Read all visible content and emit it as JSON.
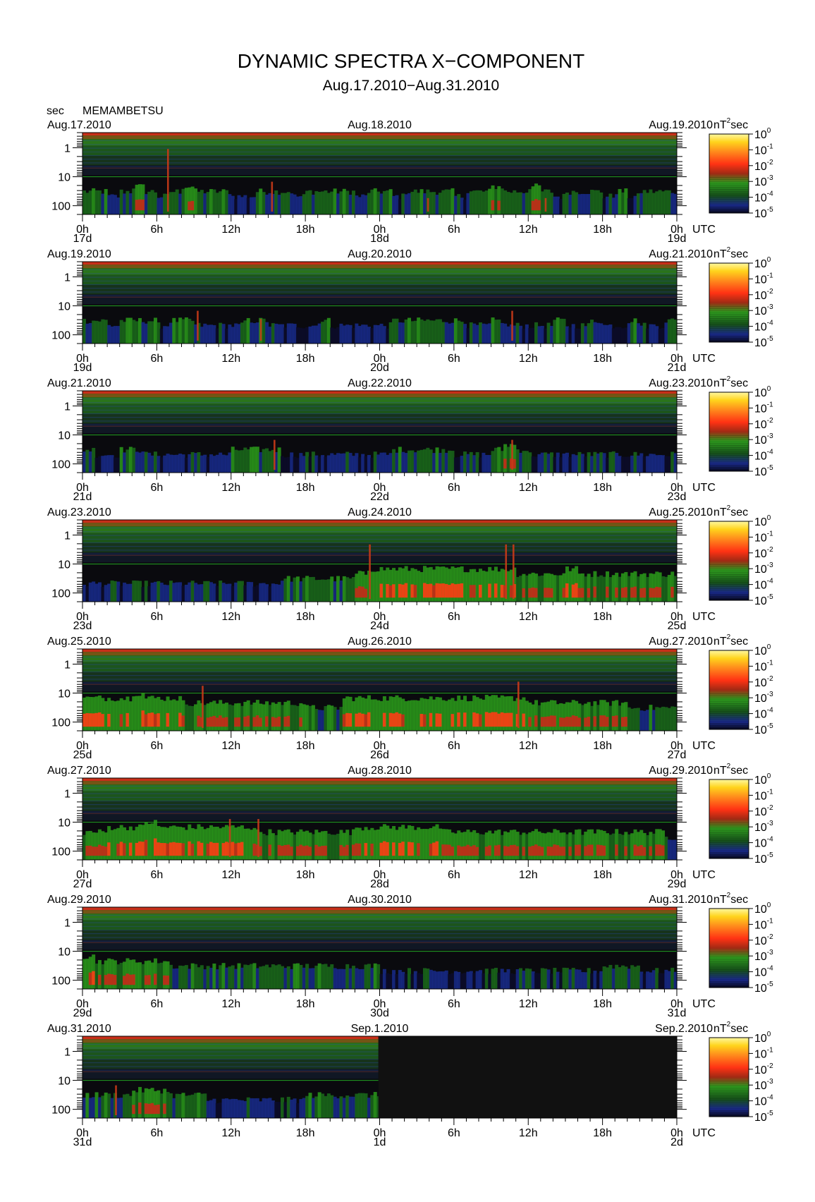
{
  "page": {
    "title": "DYNAMIC SPECTRA X−COMPONENT",
    "subtitle": "Aug.17.2010−Aug.31.2010",
    "ylabel": "sec",
    "station": "MEMAMBETSU"
  },
  "colors": {
    "background": "#0a0a0e",
    "nodata": "#111111",
    "scale": [
      "#0c0c2a",
      "#182a8a",
      "#1a6a1a",
      "#2a9a1a",
      "#c82818",
      "#ff3c14",
      "#ff9a1c",
      "#ffe018",
      "#fff8a0"
    ]
  },
  "chart_data": {
    "type": "heatmap",
    "title": "DYNAMIC SPECTRA X−COMPONENT",
    "subtitle": "Aug.17.2010−Aug.31.2010",
    "ylabel": "sec",
    "y_scale": "log",
    "y_ticks": [
      "1",
      "10",
      "100"
    ],
    "x_ticks": [
      "0h",
      "6h",
      "12h",
      "18h",
      "0h",
      "6h",
      "12h",
      "18h",
      "0h"
    ],
    "x_unit": "UTC",
    "color_unit": "nT²sec",
    "color_scale": {
      "scale": "log",
      "range": [
        "10⁻⁵",
        "10⁰"
      ],
      "tick_bases": [
        "10",
        "10",
        "10",
        "10",
        "10",
        "10"
      ],
      "tick_exponents": [
        "0",
        "-1",
        "-2",
        "-3",
        "-4",
        "-5"
      ]
    },
    "panels": [
      {
        "date_left": "Aug.17.2010",
        "date_mid": "Aug.18.2010",
        "date_right": "Aug.19.2010",
        "day_left": "17d",
        "day_mid": "18d",
        "day_right": "19d",
        "activity": [
          2,
          2,
          1,
          2,
          3,
          2,
          1,
          2,
          3,
          2,
          2,
          2,
          1,
          1,
          2,
          2,
          2,
          1,
          2,
          2,
          2,
          2,
          1,
          2,
          2,
          1,
          2,
          2,
          2,
          2,
          1,
          2,
          2,
          3,
          2,
          2,
          3,
          2,
          1,
          2,
          2,
          2,
          1,
          2,
          1,
          2,
          2,
          2
        ],
        "spikes": [
          {
            "hour": 6.9,
            "to": 0.2
          },
          {
            "hour": 15.3,
            "to": 0.6
          },
          {
            "hour": 27.9,
            "to": 0.8
          },
          {
            "hour": 37.4,
            "to": 0.8
          }
        ],
        "data_end_hour": 48
      },
      {
        "date_left": "Aug.19.2010",
        "date_mid": "Aug.20.2010",
        "date_right": "Aug.21.2010",
        "day_left": "19d",
        "day_mid": "20d",
        "day_right": "21d",
        "activity": [
          2,
          2,
          1,
          2,
          2,
          2,
          1,
          2,
          2,
          1,
          1,
          1,
          1,
          2,
          2,
          1,
          1,
          1,
          1,
          2,
          1,
          1,
          1,
          1,
          1,
          2,
          2,
          2,
          2,
          2,
          2,
          1,
          1,
          2,
          1,
          1,
          1,
          1,
          2,
          1,
          1,
          2,
          1,
          1,
          2,
          1,
          1,
          2
        ],
        "spikes": [
          {
            "hour": 9.3,
            "to": 0.6
          },
          {
            "hour": 14.4,
            "to": 0.7
          },
          {
            "hour": 34.7,
            "to": 0.6
          }
        ],
        "data_end_hour": 48
      },
      {
        "date_left": "Aug.21.2010",
        "date_mid": "Aug.22.2010",
        "date_right": "Aug.23.2010",
        "day_left": "21d",
        "day_mid": "22d",
        "day_right": "23d",
        "activity": [
          2,
          1,
          1,
          2,
          2,
          1,
          1,
          1,
          1,
          1,
          1,
          1,
          2,
          2,
          2,
          2,
          1,
          1,
          1,
          1,
          1,
          1,
          1,
          1,
          1,
          2,
          2,
          2,
          2,
          2,
          1,
          1,
          1,
          2,
          3,
          2,
          1,
          1,
          1,
          1,
          1,
          1,
          1,
          1,
          1,
          1,
          1,
          1
        ],
        "spikes": [
          {
            "hour": 15.5,
            "to": 0.6
          },
          {
            "hour": 34.7,
            "to": 0.6
          }
        ],
        "data_end_hour": 48
      },
      {
        "date_left": "Aug.23.2010",
        "date_mid": "Aug.24.2010",
        "date_right": "Aug.25.2010",
        "day_left": "23d",
        "day_mid": "24d",
        "day_right": "25d",
        "activity": [
          1,
          1,
          1,
          1,
          1,
          1,
          1,
          1,
          1,
          1,
          1,
          1,
          1,
          1,
          1,
          1,
          2,
          2,
          2,
          2,
          2,
          2,
          3,
          4,
          4,
          4,
          4,
          4,
          4,
          4,
          4,
          4,
          4,
          4,
          4,
          3,
          3,
          3,
          3,
          4,
          3,
          3,
          3,
          3,
          3,
          3,
          3,
          3
        ],
        "spikes": [
          {
            "hour": 23.2,
            "to": 0.3
          },
          {
            "hour": 34.2,
            "to": 0.3
          },
          {
            "hour": 34.8,
            "to": 0.3
          }
        ],
        "data_end_hour": 48
      },
      {
        "date_left": "Aug.25.2010",
        "date_mid": "Aug.26.2010",
        "date_right": "Aug.27.2010",
        "day_left": "25d",
        "day_mid": "26d",
        "day_right": "27d",
        "activity": [
          4,
          4,
          4,
          4,
          5,
          4,
          4,
          4,
          3,
          3,
          3,
          3,
          3,
          3,
          3,
          3,
          3,
          3,
          2,
          2,
          2,
          4,
          4,
          4,
          4,
          4,
          4,
          4,
          4,
          4,
          4,
          4,
          4,
          4,
          4,
          4,
          3,
          3,
          3,
          3,
          3,
          3,
          3,
          3,
          2,
          2,
          2,
          2
        ],
        "spikes": [
          {
            "hour": 9.7,
            "to": 0.45
          },
          {
            "hour": 35.2,
            "to": 0.4
          }
        ],
        "data_end_hour": 48
      },
      {
        "date_left": "Aug.27.2010",
        "date_mid": "Aug.28.2010",
        "date_right": "Aug.29.2010",
        "day_left": "27d",
        "day_mid": "28d",
        "day_right": "29d",
        "activity": [
          3,
          3,
          4,
          4,
          4,
          5,
          4,
          4,
          4,
          4,
          4,
          4,
          4,
          4,
          3,
          3,
          3,
          3,
          3,
          3,
          3,
          3,
          4,
          4,
          4,
          4,
          4,
          4,
          4,
          3,
          3,
          3,
          3,
          3,
          3,
          3,
          3,
          3,
          3,
          3,
          3,
          3,
          3,
          3,
          3,
          3,
          3,
          2
        ],
        "spikes": [
          {
            "hour": 11.9,
            "to": 0.5
          },
          {
            "hour": 14.2,
            "to": 0.5
          }
        ],
        "data_end_hour": 48
      },
      {
        "date_left": "Aug.29.2010",
        "date_mid": "Aug.30.2010",
        "date_right": "Aug.31.2010",
        "day_left": "29d",
        "day_mid": "30d",
        "day_right": "31d",
        "activity": [
          4,
          3,
          3,
          3,
          3,
          3,
          3,
          2,
          2,
          2,
          2,
          2,
          2,
          2,
          2,
          2,
          2,
          2,
          2,
          2,
          2,
          2,
          2,
          2,
          1,
          1,
          1,
          1,
          1,
          1,
          1,
          1,
          1,
          1,
          1,
          1,
          1,
          1,
          1,
          1,
          1,
          1,
          2,
          2,
          2,
          1,
          1,
          1
        ],
        "spikes": [],
        "data_end_hour": 48
      },
      {
        "date_left": "Aug.31.2010",
        "date_mid": "Sep.1.2010",
        "date_right": "Sep.2.2010",
        "day_left": "31d",
        "day_mid": "1d",
        "day_right": "2d",
        "activity": [
          2,
          2,
          2,
          2,
          3,
          3,
          3,
          2,
          2,
          2,
          1,
          1,
          1,
          1,
          1,
          1,
          1,
          1,
          2,
          2,
          2,
          2,
          2,
          2
        ],
        "spikes": [
          {
            "hour": 2.7,
            "to": 0.6
          }
        ],
        "data_end_hour": 23.9
      }
    ]
  }
}
